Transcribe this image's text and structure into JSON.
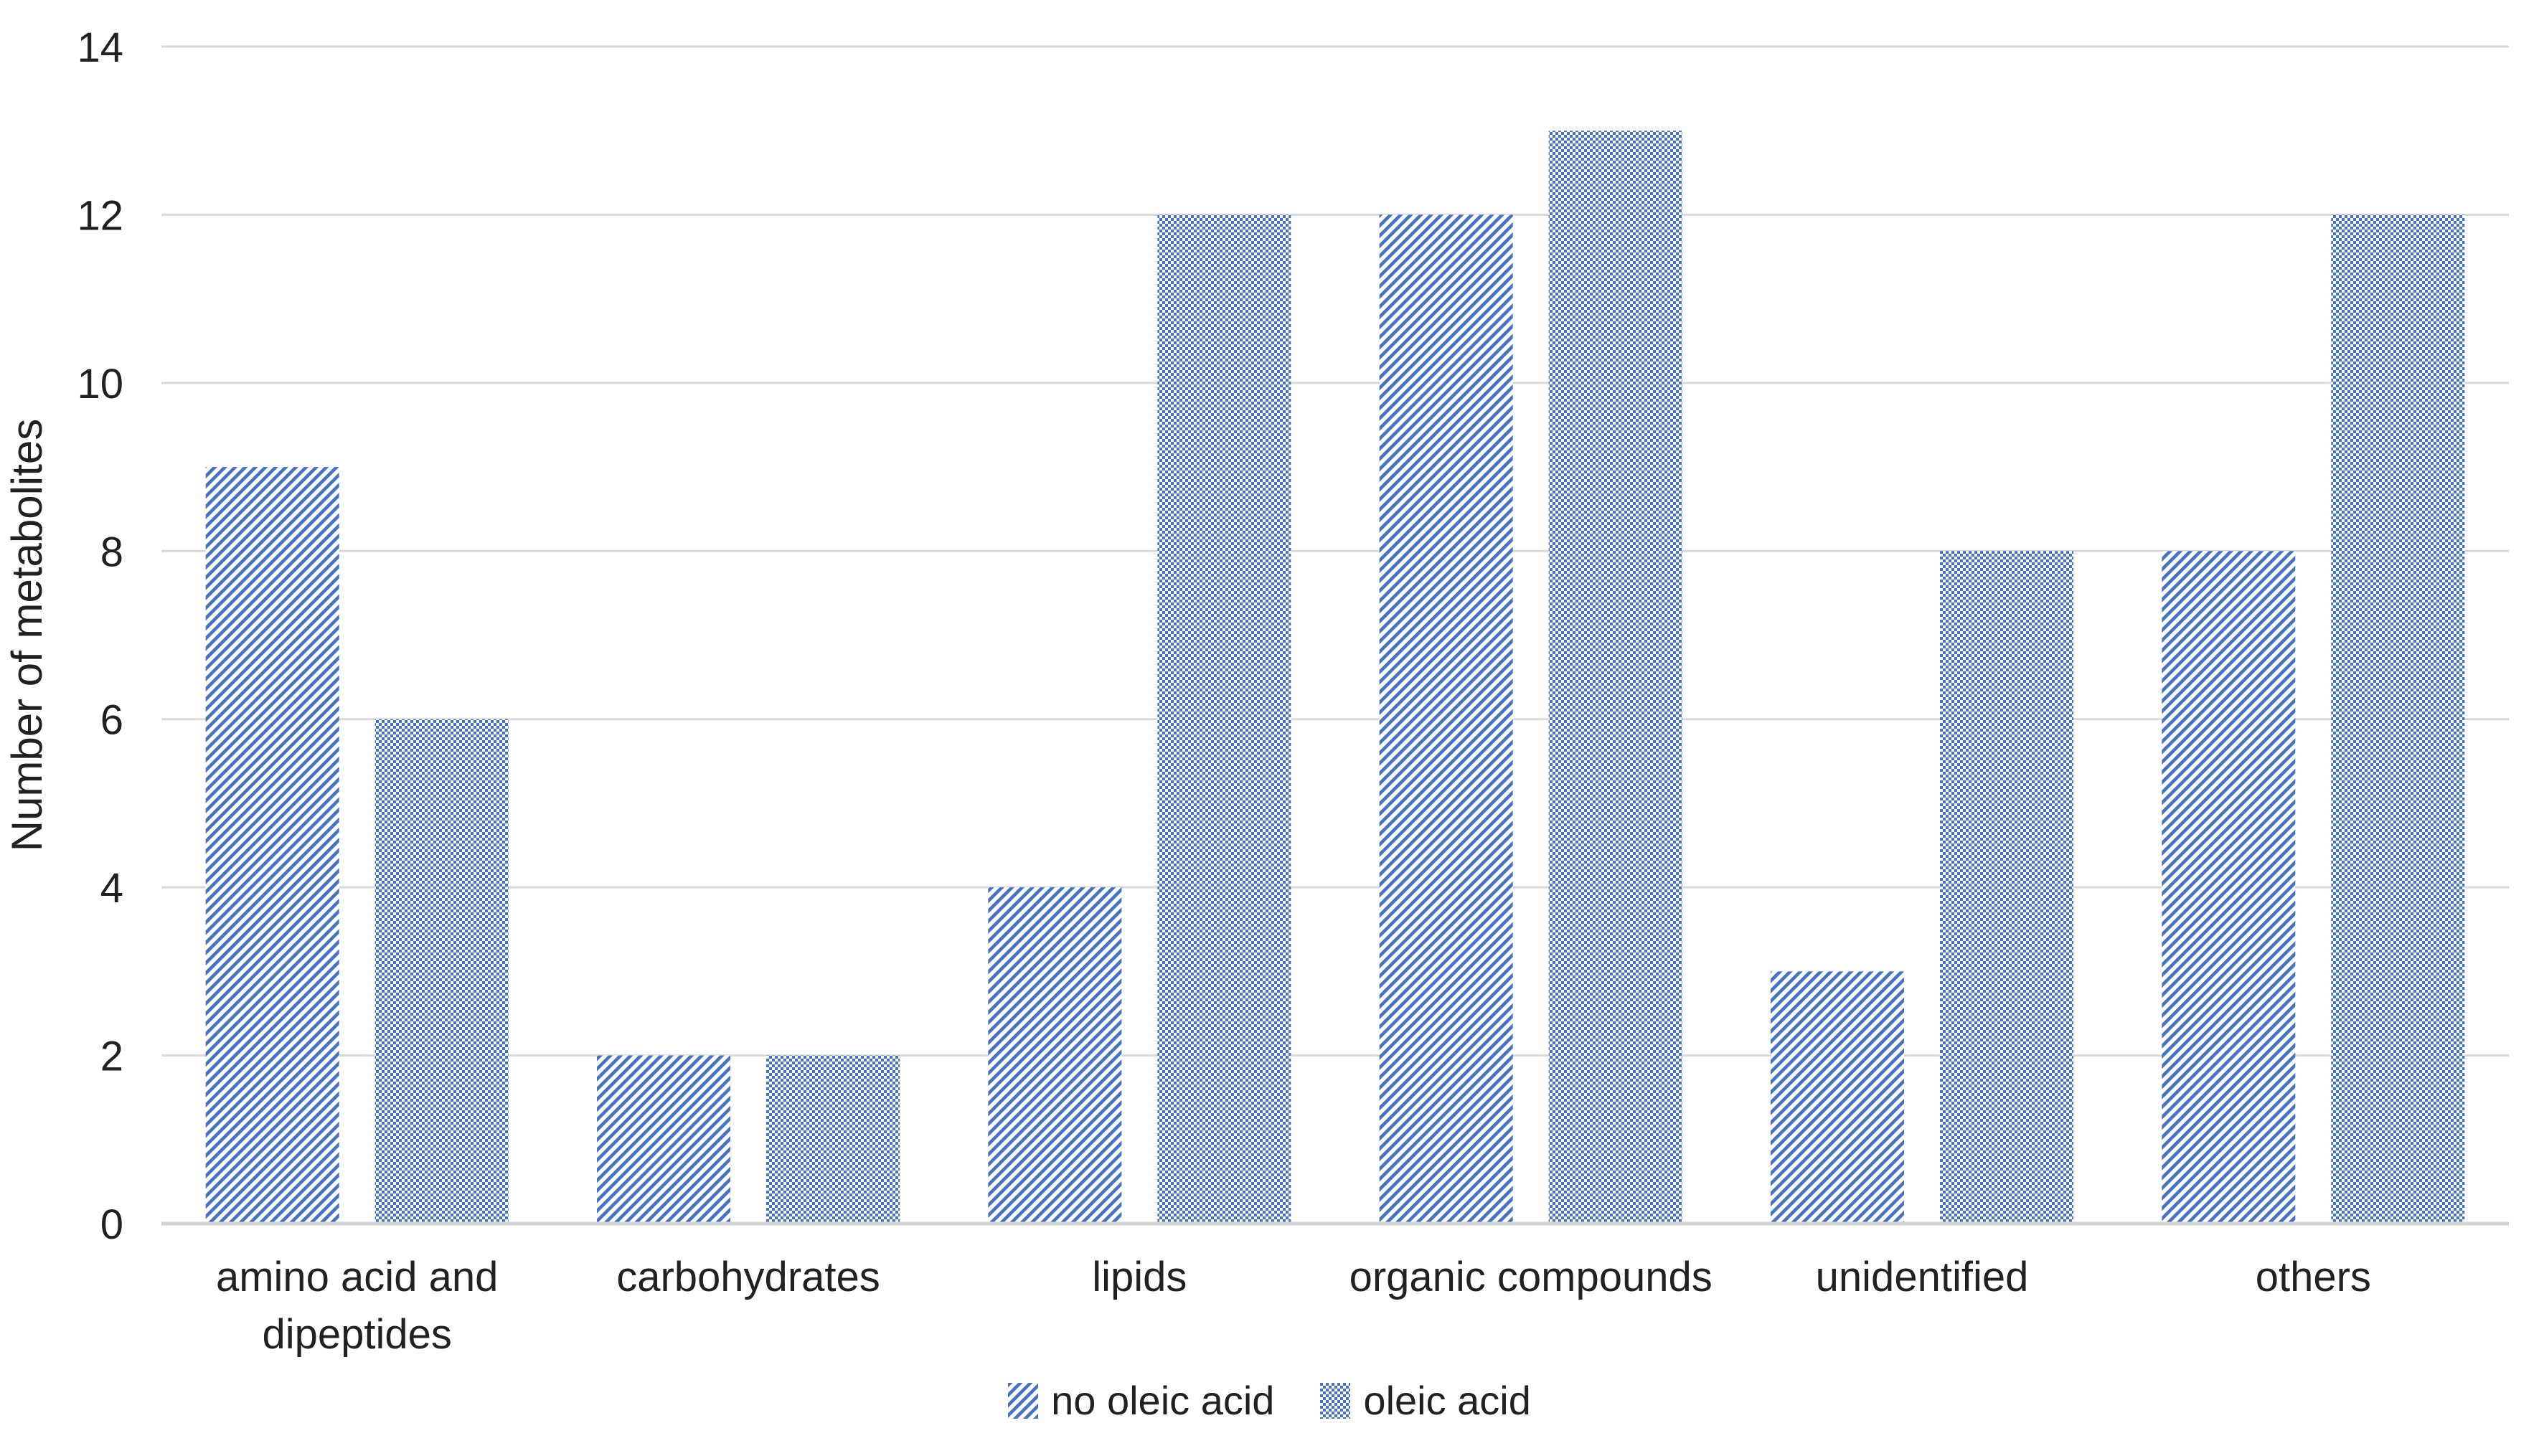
{
  "chart_data": {
    "type": "bar",
    "title": "",
    "xlabel": "",
    "ylabel": "Number of metabolites",
    "ylim": [
      0,
      14
    ],
    "yticks": [
      0,
      2,
      4,
      6,
      8,
      10,
      12,
      14
    ],
    "grid": "horizontal",
    "legend_position": "bottom-center",
    "categories": [
      "amino acid and dipeptides",
      "carbohydrates",
      "lipids",
      "organic compounds",
      "unidentified",
      "others"
    ],
    "category_lines": [
      [
        "amino acid and",
        "dipeptides"
      ],
      [
        "carbohydrates"
      ],
      [
        "lipids"
      ],
      [
        "organic compounds"
      ],
      [
        "unidentified"
      ],
      [
        "others"
      ]
    ],
    "series": [
      {
        "name": "no oleic acid",
        "pattern": "diagonal-hatch",
        "values": [
          9,
          2,
          4,
          12,
          3,
          8
        ]
      },
      {
        "name": "oleic acid",
        "pattern": "dot-checker",
        "values": [
          6,
          2,
          12,
          13,
          8,
          12
        ]
      }
    ],
    "colors": {
      "bar_blue": "#4472C4",
      "pattern_background": "#FFFFFF",
      "gridline": "#D9D9D9",
      "axis_line": "#D2D2D2",
      "text": "#212121",
      "background": "#FFFFFF"
    }
  }
}
